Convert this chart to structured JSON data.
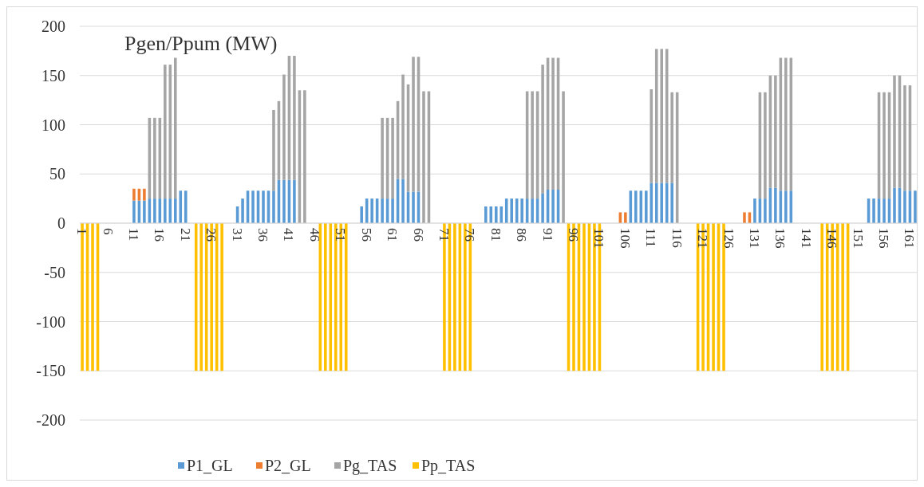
{
  "chart_data": {
    "type": "bar",
    "stacked": true,
    "ylabel": "Pgen/Ppum (MW)",
    "categories": [
      "1",
      null,
      null,
      null,
      null,
      "6",
      null,
      null,
      null,
      null,
      "11",
      null,
      null,
      null,
      null,
      "16",
      null,
      null,
      null,
      null,
      "21",
      null,
      null,
      null,
      null,
      "26",
      null,
      null,
      null,
      null,
      "31",
      null,
      null,
      null,
      null,
      "36",
      null,
      null,
      null,
      null,
      "41",
      null,
      null,
      null,
      null,
      "46",
      null,
      null,
      null,
      null,
      "51",
      null,
      null,
      null,
      null,
      "56",
      null,
      null,
      null,
      null,
      "61",
      null,
      null,
      null,
      null,
      "66",
      null,
      null,
      null,
      null,
      "71",
      null,
      null,
      null,
      null,
      "76",
      null,
      null,
      null,
      null,
      "81",
      null,
      null,
      null,
      null,
      "86",
      null,
      null,
      null,
      null,
      "91",
      null,
      null,
      null,
      null,
      "96",
      null,
      null,
      null,
      null,
      "101",
      null,
      null,
      null,
      null,
      "106",
      null,
      null,
      null,
      null,
      "111",
      null,
      null,
      null,
      null,
      "116",
      null,
      null,
      null,
      null,
      "121",
      null,
      null,
      null,
      null,
      "126",
      null,
      null,
      null,
      null,
      "131",
      null,
      null,
      null,
      null,
      "136",
      null,
      null,
      null,
      null,
      "141",
      null,
      null,
      null,
      null,
      "146",
      null,
      null,
      null,
      null,
      "151",
      null,
      null,
      null,
      null,
      "156",
      null,
      null,
      null,
      null,
      "161",
      null
    ],
    "series": [
      {
        "name": "P1_GL",
        "color": "#5b9bd5",
        "values": [
          null,
          null,
          null,
          null,
          null,
          null,
          null,
          null,
          null,
          null,
          23,
          23,
          23,
          25,
          25,
          25,
          25,
          25,
          25,
          33,
          33,
          null,
          null,
          null,
          null,
          null,
          null,
          null,
          null,
          null,
          17,
          25,
          33,
          33,
          33,
          33,
          33,
          33,
          44,
          44,
          44,
          44,
          null,
          null,
          null,
          null,
          null,
          null,
          null,
          null,
          null,
          null,
          null,
          null,
          17,
          25,
          25,
          25,
          25,
          25,
          25,
          45,
          45,
          32,
          32,
          32,
          null,
          null,
          null,
          null,
          null,
          null,
          null,
          null,
          null,
          null,
          null,
          null,
          17,
          17,
          17,
          17,
          25,
          25,
          25,
          25,
          25,
          25,
          25,
          30,
          34,
          34,
          34,
          null,
          null,
          null,
          null,
          null,
          null,
          null,
          null,
          null,
          null,
          null,
          null,
          null,
          33,
          33,
          33,
          33,
          41,
          41,
          41,
          41,
          41,
          null,
          null,
          null,
          null,
          null,
          null,
          null,
          null,
          null,
          null,
          null,
          null,
          null,
          null,
          null,
          25,
          25,
          25,
          36,
          36,
          33,
          33,
          33,
          null,
          null,
          null,
          null,
          null,
          null,
          null,
          null,
          null,
          null,
          null,
          null,
          null,
          null,
          25,
          25,
          25,
          25,
          25,
          36,
          36,
          33,
          33,
          33
        ]
      },
      {
        "name": "P2_GL",
        "color": "#ed7d31",
        "values": [
          null,
          null,
          null,
          null,
          null,
          null,
          null,
          null,
          null,
          null,
          12,
          12,
          12,
          null,
          null,
          null,
          null,
          null,
          null,
          null,
          null,
          null,
          null,
          null,
          null,
          null,
          null,
          null,
          null,
          null,
          null,
          null,
          null,
          null,
          null,
          null,
          null,
          null,
          null,
          null,
          null,
          null,
          null,
          null,
          null,
          null,
          null,
          null,
          null,
          null,
          null,
          null,
          null,
          null,
          null,
          null,
          null,
          null,
          null,
          null,
          null,
          null,
          null,
          null,
          null,
          null,
          null,
          null,
          null,
          null,
          null,
          null,
          null,
          null,
          null,
          null,
          null,
          null,
          null,
          null,
          null,
          null,
          null,
          null,
          null,
          null,
          null,
          null,
          null,
          null,
          null,
          null,
          null,
          null,
          null,
          null,
          null,
          null,
          null,
          null,
          null,
          null,
          null,
          null,
          11,
          11,
          null,
          null,
          null,
          null,
          null,
          null,
          null,
          null,
          null,
          null,
          null,
          null,
          null,
          null,
          null,
          null,
          null,
          null,
          null,
          null,
          null,
          null,
          11,
          11,
          null,
          null,
          null,
          null,
          null,
          null,
          null,
          null,
          null,
          null,
          null,
          null,
          null,
          null,
          null,
          null,
          null,
          null,
          null,
          null,
          null,
          null,
          null,
          null,
          null,
          null,
          null,
          null,
          null,
          null,
          null,
          null
        ]
      },
      {
        "name": "Pg_TAS",
        "color": "#a5a5a5",
        "values": [
          null,
          null,
          null,
          null,
          null,
          null,
          null,
          null,
          null,
          null,
          null,
          null,
          null,
          82,
          82,
          82,
          136,
          136,
          143,
          null,
          null,
          null,
          null,
          null,
          null,
          null,
          null,
          null,
          null,
          null,
          null,
          null,
          null,
          null,
          null,
          null,
          null,
          82,
          80,
          107,
          126,
          126,
          135,
          135,
          null,
          null,
          null,
          null,
          null,
          null,
          null,
          null,
          null,
          null,
          null,
          null,
          null,
          null,
          82,
          82,
          82,
          79,
          106,
          109,
          137,
          137,
          134,
          134,
          null,
          null,
          null,
          null,
          null,
          null,
          null,
          null,
          null,
          null,
          null,
          null,
          null,
          null,
          null,
          null,
          null,
          null,
          109,
          109,
          109,
          131,
          134,
          134,
          134,
          134,
          null,
          null,
          null,
          null,
          null,
          null,
          null,
          null,
          null,
          null,
          null,
          null,
          null,
          null,
          null,
          null,
          95,
          136,
          136,
          136,
          92,
          133,
          null,
          null,
          null,
          null,
          null,
          null,
          null,
          null,
          null,
          null,
          null,
          null,
          null,
          null,
          null,
          108,
          108,
          114,
          114,
          135,
          135,
          135,
          null,
          null,
          null,
          null,
          null,
          null,
          null,
          null,
          null,
          null,
          null,
          null,
          null,
          null,
          null,
          null,
          108,
          108,
          108,
          114,
          114,
          107,
          107,
          null
        ]
      },
      {
        "name": "Pp_TAS",
        "color": "#ffc000",
        "values": [
          -150,
          -150,
          -150,
          -150,
          null,
          null,
          null,
          null,
          null,
          null,
          null,
          null,
          null,
          null,
          null,
          null,
          null,
          null,
          null,
          null,
          null,
          null,
          -150,
          -150,
          -150,
          -150,
          -150,
          -150,
          null,
          null,
          null,
          null,
          null,
          null,
          null,
          null,
          null,
          null,
          null,
          null,
          null,
          null,
          null,
          null,
          null,
          null,
          -150,
          -150,
          -150,
          -150,
          -150,
          -150,
          null,
          null,
          null,
          null,
          null,
          null,
          null,
          null,
          null,
          null,
          null,
          null,
          null,
          null,
          null,
          null,
          null,
          null,
          -150,
          -150,
          -150,
          -150,
          -150,
          -150,
          null,
          null,
          null,
          null,
          null,
          null,
          null,
          null,
          null,
          null,
          null,
          null,
          null,
          null,
          null,
          null,
          null,
          null,
          -150,
          -150,
          -150,
          -150,
          -150,
          -150,
          -150,
          null,
          null,
          null,
          null,
          null,
          null,
          null,
          null,
          null,
          null,
          null,
          null,
          null,
          null,
          null,
          null,
          null,
          null,
          -150,
          -150,
          -150,
          -150,
          -150,
          -150,
          null,
          null,
          null,
          null,
          null,
          null,
          null,
          null,
          null,
          null,
          null,
          null,
          null,
          null,
          null,
          null,
          null,
          null,
          -150,
          -150,
          -150,
          -150,
          -150,
          -150,
          null,
          null,
          null,
          null,
          null,
          null,
          null,
          null,
          null,
          null,
          null,
          null,
          null
        ]
      }
    ],
    "ylim": [
      -200,
      200
    ],
    "yticks": [
      -200,
      -150,
      -100,
      -50,
      0,
      50,
      100,
      150,
      200
    ],
    "grid": "y",
    "legend": "bottom"
  }
}
